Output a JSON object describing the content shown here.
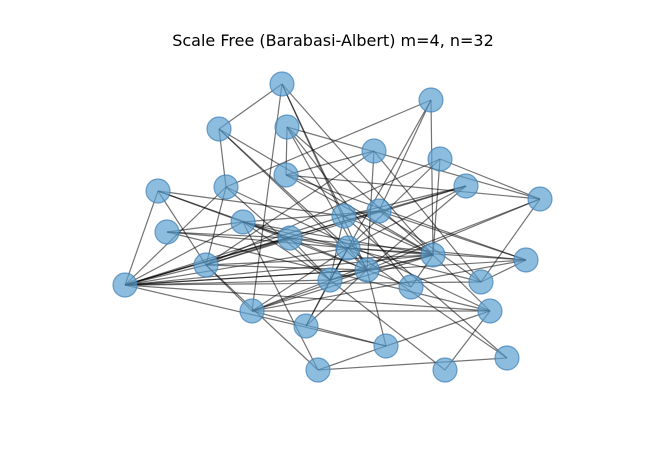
{
  "figure": {
    "title": "Scale Free (Barabasi-Albert) m=4, n=32"
  },
  "graph": {
    "node_color": "#5b9fd0",
    "node_edge_color": "#3f7fb3",
    "node_alpha": 0.7,
    "edge_color": "#000000",
    "node_count": 32,
    "m": 4,
    "edges": [
      [
        0,
        2
      ],
      [
        0,
        19
      ],
      [
        0,
        11
      ],
      [
        0,
        18
      ],
      [
        0,
        25
      ],
      [
        1,
        19
      ],
      [
        1,
        22
      ],
      [
        1,
        12
      ],
      [
        1,
        8
      ],
      [
        2,
        19
      ],
      [
        2,
        8
      ],
      [
        2,
        18
      ],
      [
        2,
        16
      ],
      [
        3,
        10
      ],
      [
        3,
        6
      ],
      [
        3,
        19
      ],
      [
        3,
        23
      ],
      [
        3,
        18
      ],
      [
        4,
        6
      ],
      [
        4,
        17
      ],
      [
        4,
        18
      ],
      [
        4,
        24
      ],
      [
        5,
        16
      ],
      [
        5,
        10
      ],
      [
        5,
        17
      ],
      [
        5,
        19
      ],
      [
        6,
        10
      ],
      [
        6,
        19
      ],
      [
        6,
        20
      ],
      [
        7,
        11
      ],
      [
        7,
        13
      ],
      [
        7,
        15
      ],
      [
        7,
        17
      ],
      [
        7,
        21
      ],
      [
        8,
        17
      ],
      [
        8,
        21
      ],
      [
        8,
        22
      ],
      [
        8,
        27
      ],
      [
        9,
        11
      ],
      [
        9,
        16
      ],
      [
        9,
        17
      ],
      [
        9,
        18
      ],
      [
        9,
        21
      ],
      [
        10,
        18
      ],
      [
        10,
        22
      ],
      [
        10,
        24
      ],
      [
        11,
        19
      ],
      [
        11,
        12
      ],
      [
        11,
        21
      ],
      [
        11,
        22
      ],
      [
        11,
        31
      ],
      [
        12,
        13
      ],
      [
        12,
        20
      ],
      [
        12,
        21
      ],
      [
        12,
        24
      ],
      [
        13,
        14
      ],
      [
        13,
        15
      ],
      [
        13,
        16
      ],
      [
        13,
        18
      ],
      [
        13,
        19
      ],
      [
        13,
        21
      ],
      [
        13,
        22
      ],
      [
        13,
        29
      ],
      [
        14,
        15
      ],
      [
        14,
        16
      ],
      [
        14,
        27
      ],
      [
        15,
        16
      ],
      [
        15,
        17
      ],
      [
        15,
        18
      ],
      [
        15,
        20
      ],
      [
        15,
        21
      ],
      [
        15,
        22
      ],
      [
        16,
        18
      ],
      [
        16,
        19
      ],
      [
        16,
        20
      ],
      [
        16,
        21
      ],
      [
        16,
        22
      ],
      [
        16,
        24
      ],
      [
        16,
        25
      ],
      [
        16,
        26
      ],
      [
        16,
        31
      ],
      [
        17,
        18
      ],
      [
        17,
        19
      ],
      [
        17,
        21
      ],
      [
        17,
        25
      ],
      [
        17,
        29
      ],
      [
        18,
        19
      ],
      [
        18,
        21
      ],
      [
        18,
        22
      ],
      [
        18,
        23
      ],
      [
        18,
        25
      ],
      [
        18,
        26
      ],
      [
        18,
        28
      ],
      [
        19,
        21
      ],
      [
        19,
        22
      ],
      [
        19,
        23
      ],
      [
        19,
        25
      ],
      [
        19,
        27
      ],
      [
        20,
        21
      ],
      [
        20,
        24
      ],
      [
        20,
        25
      ],
      [
        21,
        22
      ],
      [
        21,
        24
      ],
      [
        21,
        27
      ],
      [
        21,
        28
      ],
      [
        22,
        25
      ],
      [
        22,
        26
      ],
      [
        22,
        30
      ],
      [
        25,
        27
      ],
      [
        25,
        28
      ],
      [
        27,
        28
      ],
      [
        27,
        30
      ],
      [
        28,
        29
      ],
      [
        29,
        31
      ]
    ]
  }
}
